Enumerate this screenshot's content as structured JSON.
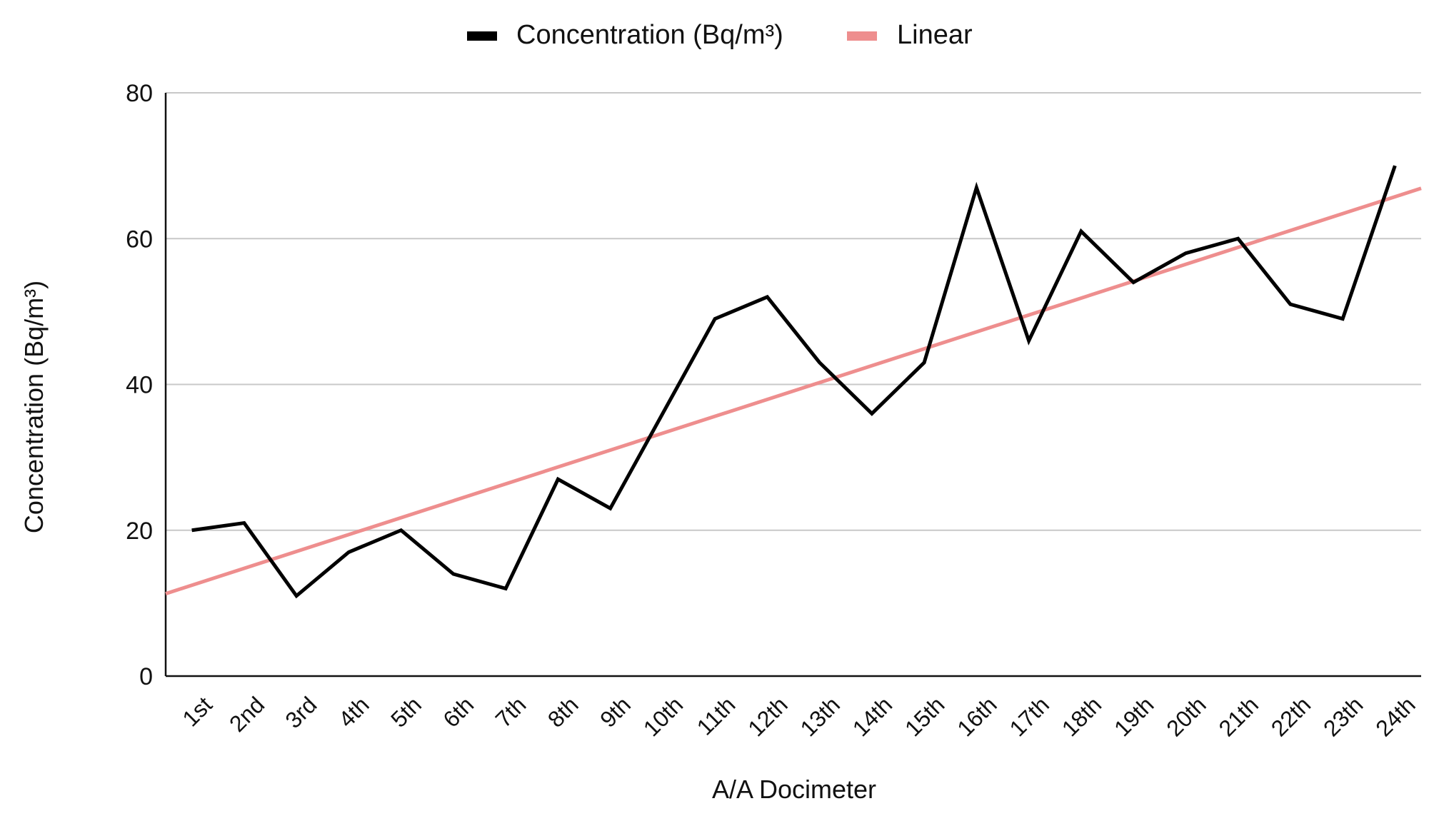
{
  "chart_data": {
    "type": "line",
    "title": "",
    "xlabel": "A/A Docimeter",
    "ylabel": "Concentration (Bq/m³)",
    "ylim": [
      0,
      80
    ],
    "yticks": [
      0,
      20,
      40,
      60,
      80
    ],
    "grid": true,
    "legend_position": "top-center",
    "categories": [
      "1st",
      "2nd",
      "3rd",
      "4th",
      "5th",
      "6th",
      "7th",
      "8th",
      "9th",
      "10th",
      "11th",
      "12th",
      "13th",
      "14th",
      "15th",
      "16th",
      "17th",
      "18th",
      "19th",
      "20th",
      "21th",
      "22th",
      "23th",
      "24th"
    ],
    "series": [
      {
        "name": "Concentration (Bq/m³)",
        "color": "#000000",
        "values": [
          20,
          21,
          11,
          17,
          20,
          14,
          12,
          27,
          23,
          36,
          49,
          52,
          43,
          36,
          43,
          67,
          46,
          61,
          54,
          58,
          60,
          51,
          49,
          70
        ]
      }
    ],
    "trendline": {
      "name": "Linear",
      "color": "#ee8e8e",
      "start_value": 11.3,
      "end_value": 66.9
    }
  }
}
